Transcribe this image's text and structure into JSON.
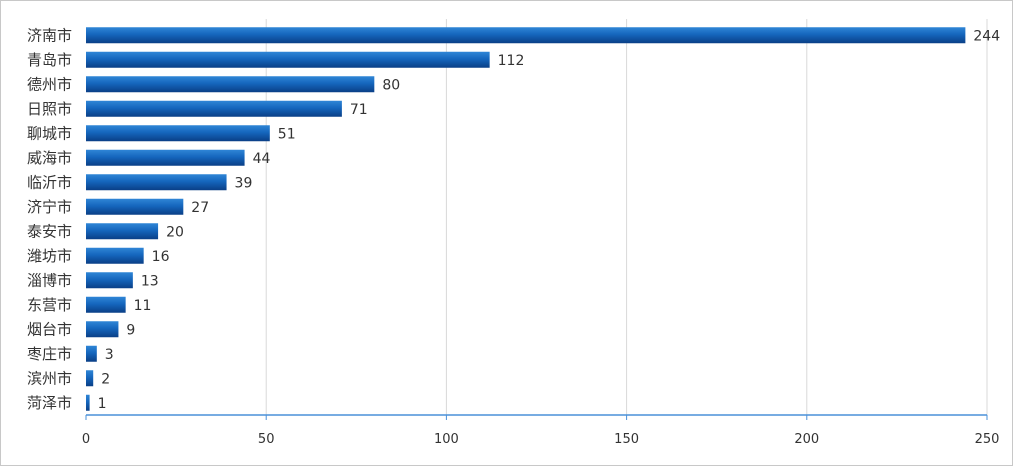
{
  "chart_data": {
    "type": "bar",
    "orientation": "horizontal",
    "title": "",
    "xlabel": "",
    "ylabel": "",
    "categories": [
      "济南市",
      "青岛市",
      "德州市",
      "日照市",
      "聊城市",
      "威海市",
      "临沂市",
      "济宁市",
      "泰安市",
      "潍坊市",
      "淄博市",
      "东营市",
      "烟台市",
      "枣庄市",
      "滨州市",
      "菏泽市"
    ],
    "values": [
      244,
      112,
      80,
      71,
      51,
      44,
      39,
      27,
      20,
      16,
      13,
      11,
      9,
      3,
      2,
      1
    ],
    "xlim": [
      0,
      250
    ],
    "xticks": [
      0,
      50,
      100,
      150,
      200,
      250
    ],
    "grid": true,
    "legend": "none",
    "data_labels": true,
    "colors": {
      "bar_top": "#2f86d6",
      "bar_bottom": "#0a3f86",
      "axis": "#4a90d9",
      "grid": "#d9d9d9"
    }
  }
}
